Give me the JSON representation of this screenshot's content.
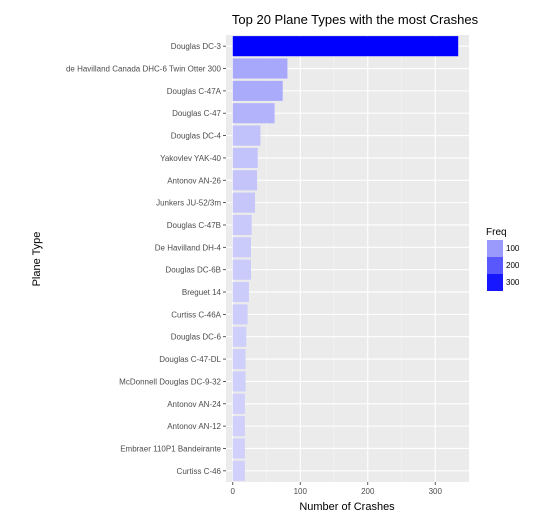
{
  "chart_data": {
    "type": "bar",
    "orientation": "horizontal",
    "title": "Top 20 Plane Types with the most Crashes",
    "xlabel": "Number of Crashes",
    "ylabel": "Plane Type",
    "xlim": [
      -10,
      350
    ],
    "x_ticks": [
      0,
      100,
      200,
      300
    ],
    "grid": true,
    "legend": {
      "title": "Freq",
      "position": "right",
      "entries": [
        {
          "label": "100",
          "value": 100
        },
        {
          "label": "200",
          "value": 200
        },
        {
          "label": "300",
          "value": 300
        }
      ]
    },
    "categories": [
      "Douglas DC-3",
      "de Havilland Canada DHC-6 Twin Otter 300",
      "Douglas C-47A",
      "Douglas C-47",
      "Douglas DC-4",
      "Yakovlev YAK-40",
      "Antonov AN-26",
      "Junkers JU-52/3m",
      "Douglas C-47B",
      "De Havilland DH-4",
      "Douglas DC-6B",
      "Breguet 14",
      "Curtiss C-46A",
      "Douglas DC-6",
      "Douglas C-47-DL",
      "McDonnell Douglas DC-9-32",
      "Antonov AN-24",
      "Antonov AN-12",
      "Embraer 110P1 Bandeirante",
      "Curtiss C-46"
    ],
    "values": [
      334,
      81,
      74,
      62,
      41,
      37,
      36,
      33,
      28,
      27,
      27,
      24,
      22,
      20,
      19,
      19,
      18,
      18,
      18,
      18
    ],
    "colors": {
      "low": "#d0d0fb",
      "high": "#0000ff",
      "panel": "#ebebeb",
      "grid_major": "#ffffff",
      "grid_minor": "#f5f5f5"
    }
  }
}
